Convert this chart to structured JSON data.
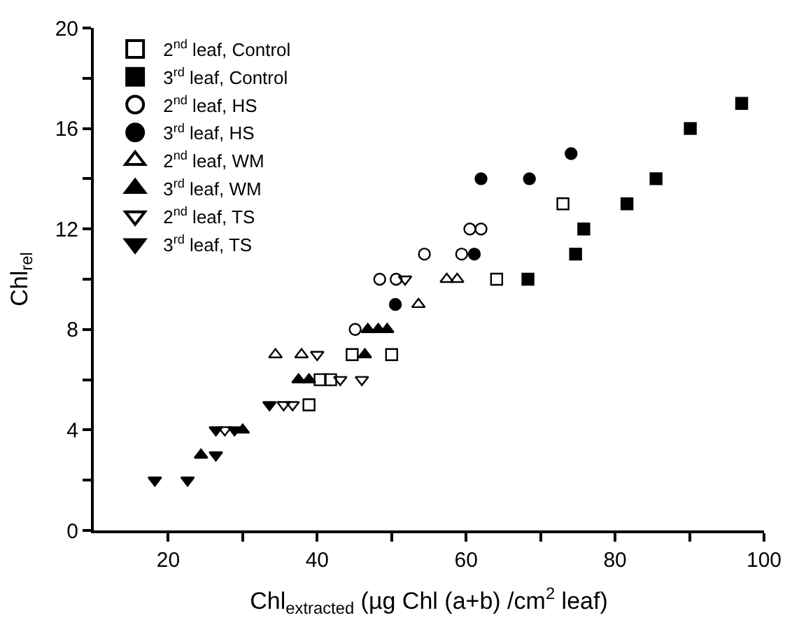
{
  "chart_data": {
    "type": "scatter",
    "xlabel": "Chl$_{extracted}$ (µg Chl (a+b) /cm$^{2}$ leaf)",
    "ylabel": "Chl$_{rel}$",
    "xlim": [
      10,
      100
    ],
    "xticks": [
      20,
      {
        "value": 30,
        "label": null
      },
      40,
      {
        "value": 50,
        "label": null
      },
      60,
      {
        "value": 70,
        "label": null
      },
      80,
      {
        "value": 90,
        "label": null
      },
      100
    ],
    "ylim": [
      0,
      20
    ],
    "yticks": [
      0,
      {
        "value": 2,
        "label": null
      },
      4,
      {
        "value": 6,
        "label": null
      },
      8,
      {
        "value": 10,
        "label": null
      },
      12,
      {
        "value": 14,
        "label": null
      },
      16,
      {
        "value": 18,
        "label": null
      },
      20
    ],
    "legend": "top left",
    "series": [
      {
        "name": "2$^{nd}$ leaf, Control",
        "color": "#000000",
        "marker": "square-open",
        "x": [
          38.9,
          40.4,
          41.8,
          44.7,
          50.0,
          64.1,
          73.0
        ],
        "values": [
          5,
          6,
          6,
          7,
          7,
          10,
          13
        ]
      },
      {
        "name": "3$^{rd}$ leaf, Control",
        "color": "#000000",
        "marker": "square",
        "x": [
          68.3,
          74.7,
          75.8,
          81.6,
          85.5,
          90.1,
          97.0
        ],
        "values": [
          10,
          11,
          12,
          13,
          14,
          16,
          17
        ]
      },
      {
        "name": "2$^{nd}$ leaf, HS",
        "color": "#000000",
        "marker": "circle-open",
        "x": [
          45.1,
          48.4,
          50.6,
          54.4,
          59.4,
          60.5,
          62.0
        ],
        "values": [
          8,
          10,
          10,
          11,
          11,
          12,
          12
        ]
      },
      {
        "name": "3$^{rd}$ leaf, HS",
        "color": "#000000",
        "marker": "circle",
        "x": [
          50.5,
          61.1,
          62.0,
          68.5,
          74.1
        ],
        "values": [
          9,
          11,
          14,
          14,
          15
        ]
      },
      {
        "name": "2$^{nd}$ leaf, WM",
        "color": "#000000",
        "marker": "triangle-up-open",
        "x": [
          34.4,
          37.9,
          53.6,
          57.4,
          58.8
        ],
        "values": [
          7,
          7,
          9,
          10,
          10
        ]
      },
      {
        "name": "3$^{rd}$ leaf, WM",
        "color": "#000000",
        "marker": "triangle-up",
        "x": [
          24.4,
          30.0,
          37.5,
          38.9,
          46.4,
          46.8,
          48.2,
          49.4
        ],
        "values": [
          3,
          4,
          6,
          6,
          7,
          8,
          8,
          8
        ]
      },
      {
        "name": "2$^{nd}$ leaf, TS",
        "color": "#000000",
        "marker": "triangle-down-open",
        "x": [
          27.6,
          35.5,
          36.7,
          40.0,
          43.1,
          46.0,
          51.8
        ],
        "values": [
          4,
          5,
          5,
          7,
          6,
          6,
          10
        ]
      },
      {
        "name": "3$^{rd}$ leaf, TS",
        "color": "#000000",
        "marker": "triangle-down",
        "x": [
          18.2,
          22.6,
          26.4,
          26.4,
          28.9,
          33.6
        ],
        "values": [
          2,
          2,
          3,
          4,
          4,
          5
        ]
      }
    ]
  }
}
